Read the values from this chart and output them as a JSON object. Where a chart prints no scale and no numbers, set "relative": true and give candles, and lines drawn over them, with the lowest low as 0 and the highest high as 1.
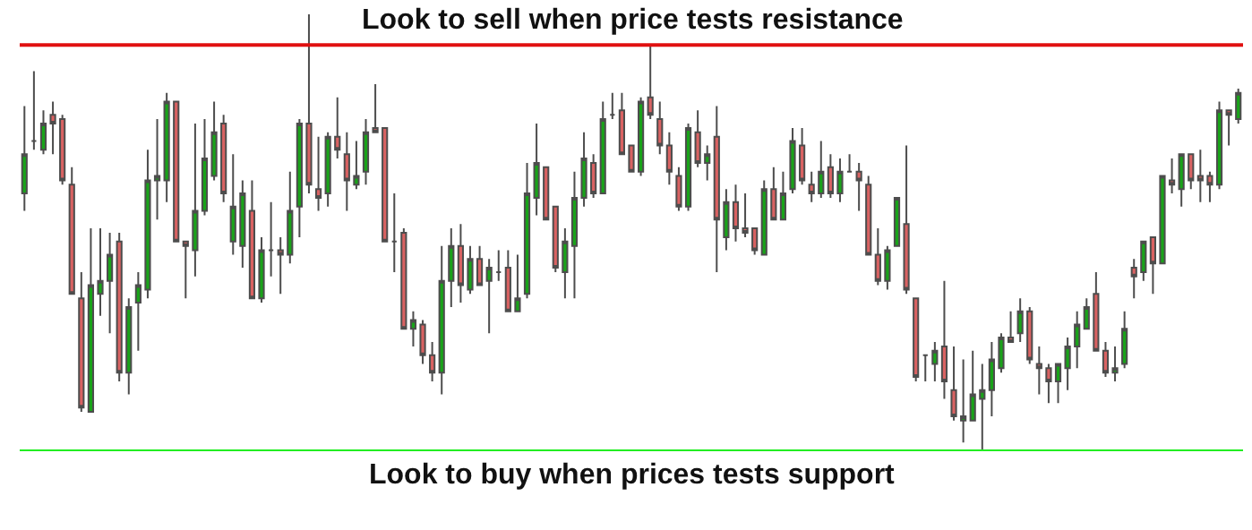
{
  "chart_data": {
    "type": "candlestick",
    "relative": true,
    "categories": [
      null,
      null,
      null,
      null,
      null,
      null,
      null,
      null,
      null,
      null,
      null,
      null,
      null,
      null,
      null,
      null,
      null,
      null,
      null,
      null,
      null,
      null,
      null,
      null,
      null,
      null,
      null,
      null,
      null,
      null,
      null,
      null,
      null,
      null,
      null,
      null,
      null,
      null,
      null,
      null,
      null,
      null,
      null,
      null,
      null,
      null,
      null,
      null,
      null,
      null,
      null,
      null,
      null,
      null,
      null,
      null,
      null,
      null,
      null,
      null,
      null,
      null,
      null,
      null,
      null,
      null,
      null,
      null,
      null,
      null,
      null,
      null,
      null,
      null,
      null,
      null,
      null,
      null,
      null,
      null,
      null,
      null,
      null,
      null,
      null,
      null,
      null,
      null,
      null,
      null,
      null,
      null,
      null,
      null,
      null,
      null,
      null,
      null,
      null,
      null,
      null,
      null,
      null,
      null,
      null,
      null,
      null,
      null,
      null,
      null,
      null,
      null,
      null,
      null,
      null,
      null,
      null,
      null,
      null,
      null,
      null,
      null,
      null,
      null,
      null,
      null,
      null,
      null,
      null
    ],
    "ohlc": [
      [
        0.59,
        0.79,
        0.55,
        0.68
      ],
      [
        0.71,
        0.87,
        0.69,
        0.71
      ],
      [
        0.69,
        0.78,
        0.68,
        0.75
      ],
      [
        0.77,
        0.8,
        0.68,
        0.75
      ],
      [
        0.76,
        0.77,
        0.61,
        0.62
      ],
      [
        0.61,
        0.65,
        0.36,
        0.36
      ],
      [
        0.35,
        0.41,
        0.09,
        0.1
      ],
      [
        0.09,
        0.51,
        0.09,
        0.38
      ],
      [
        0.36,
        0.51,
        0.31,
        0.39
      ],
      [
        0.39,
        0.5,
        0.27,
        0.45
      ],
      [
        0.48,
        0.5,
        0.16,
        0.18
      ],
      [
        0.18,
        0.35,
        0.13,
        0.33
      ],
      [
        0.34,
        0.41,
        0.23,
        0.38
      ],
      [
        0.37,
        0.69,
        0.35,
        0.62
      ],
      [
        0.62,
        0.76,
        0.53,
        0.63
      ],
      [
        0.62,
        0.82,
        0.57,
        0.8
      ],
      [
        0.8,
        0.8,
        0.48,
        0.48
      ],
      [
        0.48,
        0.48,
        0.35,
        0.47
      ],
      [
        0.46,
        0.75,
        0.4,
        0.55
      ],
      [
        0.55,
        0.76,
        0.54,
        0.67
      ],
      [
        0.63,
        0.8,
        0.62,
        0.73
      ],
      [
        0.75,
        0.77,
        0.57,
        0.59
      ],
      [
        0.48,
        0.68,
        0.45,
        0.56
      ],
      [
        0.47,
        0.62,
        0.42,
        0.59
      ],
      [
        0.55,
        0.62,
        0.35,
        0.35
      ],
      [
        0.35,
        0.49,
        0.34,
        0.46
      ],
      [
        0.46,
        0.57,
        0.4,
        0.46
      ],
      [
        0.46,
        0.49,
        0.36,
        0.45
      ],
      [
        0.45,
        0.64,
        0.43,
        0.55
      ],
      [
        0.56,
        0.76,
        0.49,
        0.75
      ],
      [
        0.75,
        1.0,
        0.59,
        0.61
      ],
      [
        0.6,
        0.72,
        0.55,
        0.58
      ],
      [
        0.59,
        0.73,
        0.56,
        0.72
      ],
      [
        0.72,
        0.81,
        0.67,
        0.69
      ],
      [
        0.68,
        0.73,
        0.55,
        0.62
      ],
      [
        0.61,
        0.71,
        0.6,
        0.63
      ],
      [
        0.64,
        0.76,
        0.61,
        0.73
      ],
      [
        0.74,
        0.84,
        0.73,
        0.73
      ],
      [
        0.74,
        0.74,
        0.48,
        0.48
      ],
      [
        0.48,
        0.59,
        0.41,
        0.48
      ],
      [
        0.5,
        0.51,
        0.28,
        0.28
      ],
      [
        0.28,
        0.32,
        0.24,
        0.3
      ],
      [
        0.29,
        0.3,
        0.2,
        0.22
      ],
      [
        0.22,
        0.25,
        0.16,
        0.18
      ],
      [
        0.18,
        0.47,
        0.13,
        0.39
      ],
      [
        0.39,
        0.51,
        0.33,
        0.47
      ],
      [
        0.47,
        0.52,
        0.34,
        0.38
      ],
      [
        0.37,
        0.47,
        0.36,
        0.44
      ],
      [
        0.44,
        0.47,
        0.38,
        0.38
      ],
      [
        0.39,
        0.44,
        0.27,
        0.42
      ],
      [
        0.41,
        0.46,
        0.39,
        0.41
      ],
      [
        0.42,
        0.46,
        0.32,
        0.32
      ],
      [
        0.32,
        0.45,
        0.32,
        0.35
      ],
      [
        0.36,
        0.66,
        0.35,
        0.59
      ],
      [
        0.58,
        0.75,
        0.54,
        0.66
      ],
      [
        0.65,
        0.65,
        0.53,
        0.53
      ],
      [
        0.56,
        0.56,
        0.41,
        0.42
      ],
      [
        0.41,
        0.51,
        0.35,
        0.48
      ],
      [
        0.47,
        0.64,
        0.35,
        0.58
      ],
      [
        0.58,
        0.73,
        0.56,
        0.67
      ],
      [
        0.66,
        0.68,
        0.58,
        0.59
      ],
      [
        0.59,
        0.8,
        0.59,
        0.76
      ],
      [
        0.77,
        0.82,
        0.76,
        0.77
      ],
      [
        0.78,
        0.82,
        0.68,
        0.68
      ],
      [
        0.7,
        0.7,
        0.64,
        0.64
      ],
      [
        0.64,
        0.81,
        0.63,
        0.8
      ],
      [
        0.81,
        0.93,
        0.76,
        0.77
      ],
      [
        0.76,
        0.8,
        0.68,
        0.7
      ],
      [
        0.7,
        0.73,
        0.61,
        0.64
      ],
      [
        0.63,
        0.65,
        0.55,
        0.56
      ],
      [
        0.56,
        0.75,
        0.55,
        0.74
      ],
      [
        0.73,
        0.78,
        0.65,
        0.66
      ],
      [
        0.66,
        0.7,
        0.62,
        0.68
      ],
      [
        0.72,
        0.79,
        0.41,
        0.53
      ],
      [
        0.49,
        0.6,
        0.46,
        0.57
      ],
      [
        0.57,
        0.61,
        0.48,
        0.51
      ],
      [
        0.51,
        0.59,
        0.49,
        0.5
      ],
      [
        0.51,
        0.51,
        0.45,
        0.46
      ],
      [
        0.45,
        0.62,
        0.45,
        0.6
      ],
      [
        0.6,
        0.65,
        0.53,
        0.53
      ],
      [
        0.53,
        0.64,
        0.53,
        0.59
      ],
      [
        0.6,
        0.74,
        0.59,
        0.71
      ],
      [
        0.7,
        0.74,
        0.61,
        0.62
      ],
      [
        0.61,
        0.64,
        0.57,
        0.59
      ],
      [
        0.59,
        0.71,
        0.58,
        0.64
      ],
      [
        0.65,
        0.68,
        0.58,
        0.59
      ],
      [
        0.59,
        0.67,
        0.57,
        0.64
      ],
      [
        0.64,
        0.68,
        0.64,
        0.64
      ],
      [
        0.64,
        0.66,
        0.55,
        0.62
      ],
      [
        0.61,
        0.63,
        0.45,
        0.45
      ],
      [
        0.45,
        0.51,
        0.38,
        0.39
      ],
      [
        0.39,
        0.47,
        0.37,
        0.46
      ],
      [
        0.47,
        0.58,
        0.47,
        0.58
      ],
      [
        0.52,
        0.7,
        0.36,
        0.37
      ],
      [
        0.35,
        0.35,
        0.16,
        0.17
      ],
      [
        0.22,
        0.22,
        0.16,
        0.22
      ],
      [
        0.2,
        0.25,
        0.16,
        0.23
      ],
      [
        0.24,
        0.39,
        0.12,
        0.16
      ],
      [
        0.14,
        0.24,
        0.07,
        0.08
      ],
      [
        0.07,
        0.21,
        0.02,
        0.08
      ],
      [
        0.07,
        0.23,
        0.07,
        0.13
      ],
      [
        0.12,
        0.2,
        0.0,
        0.14
      ],
      [
        0.14,
        0.25,
        0.08,
        0.21
      ],
      [
        0.19,
        0.27,
        0.18,
        0.26
      ],
      [
        0.26,
        0.32,
        0.25,
        0.25
      ],
      [
        0.27,
        0.35,
        0.25,
        0.32
      ],
      [
        0.32,
        0.33,
        0.2,
        0.21
      ],
      [
        0.2,
        0.24,
        0.13,
        0.19
      ],
      [
        0.19,
        0.2,
        0.11,
        0.16
      ],
      [
        0.16,
        0.2,
        0.11,
        0.2
      ],
      [
        0.19,
        0.26,
        0.14,
        0.24
      ],
      [
        0.24,
        0.32,
        0.19,
        0.29
      ],
      [
        0.28,
        0.35,
        0.28,
        0.33
      ],
      [
        0.36,
        0.41,
        0.23,
        0.23
      ],
      [
        0.23,
        0.25,
        0.17,
        0.18
      ],
      [
        0.18,
        0.24,
        0.16,
        0.19
      ],
      [
        0.2,
        0.32,
        0.19,
        0.28
      ],
      [
        0.42,
        0.44,
        0.35,
        0.4
      ],
      [
        0.41,
        0.48,
        0.39,
        0.48
      ],
      [
        0.49,
        0.49,
        0.36,
        0.43
      ],
      [
        0.43,
        0.63,
        0.43,
        0.63
      ],
      [
        0.62,
        0.67,
        0.59,
        0.61
      ],
      [
        0.6,
        0.68,
        0.56,
        0.68
      ],
      [
        0.68,
        0.68,
        0.6,
        0.62
      ],
      [
        0.63,
        0.69,
        0.57,
        0.62
      ],
      [
        0.63,
        0.64,
        0.57,
        0.61
      ],
      [
        0.61,
        0.8,
        0.6,
        0.78
      ],
      [
        0.78,
        0.78,
        0.7,
        0.77
      ],
      [
        0.76,
        0.83,
        0.75,
        0.82
      ]
    ],
    "ref_lines": [
      {
        "axis": "y",
        "value": 0.93,
        "label": "Look to sell when price tests resistance",
        "color": "#e01010"
      },
      {
        "axis": "y",
        "value": 0,
        "label": "Look to buy when prices tests support",
        "color": "#22ee22"
      }
    ]
  }
}
